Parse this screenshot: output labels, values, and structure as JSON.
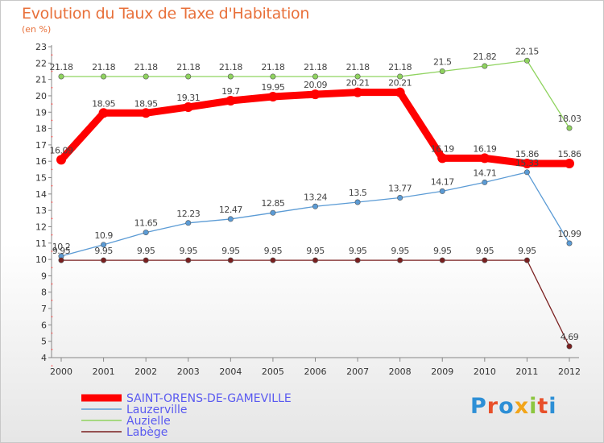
{
  "header": {
    "title": "Evolution du Taux de Taxe d'Habitation",
    "subtitle": "(en %)"
  },
  "logo": {
    "text": "Proxiti"
  },
  "chart_data": {
    "type": "line",
    "title": "Evolution du Taux de Taxe d'Habitation",
    "ylabel": "(en %)",
    "x": [
      2000,
      2001,
      2002,
      2003,
      2004,
      2005,
      2006,
      2007,
      2008,
      2009,
      2010,
      2011,
      2012
    ],
    "ylim": [
      4,
      23
    ],
    "yticks": [
      4,
      5,
      6,
      7,
      8,
      9,
      10,
      11,
      12,
      13,
      14,
      15,
      16,
      17,
      18,
      19,
      20,
      21,
      22,
      23
    ],
    "grid": false,
    "legend_position": "bottom-left",
    "series": [
      {
        "name": "SAINT-ORENS-DE-GAMEVILLE",
        "color": "#ff0000",
        "weight": "thick",
        "values": [
          16.09,
          18.95,
          18.95,
          19.31,
          19.7,
          19.95,
          20.09,
          20.21,
          20.21,
          16.19,
          16.19,
          15.86,
          15.86
        ]
      },
      {
        "name": "Lauzerville",
        "color": "#5b9bd5",
        "weight": "thin",
        "values": [
          10.2,
          10.9,
          11.65,
          12.23,
          12.47,
          12.85,
          13.24,
          13.5,
          13.77,
          14.17,
          14.71,
          15.33,
          10.99
        ]
      },
      {
        "name": "Auzielle",
        "color": "#8fd35f",
        "weight": "thin",
        "values": [
          21.18,
          21.18,
          21.18,
          21.18,
          21.18,
          21.18,
          21.18,
          21.18,
          21.18,
          21.5,
          21.82,
          22.15,
          18.03
        ]
      },
      {
        "name": "Labège",
        "color": "#7a1f1f",
        "weight": "thin",
        "values": [
          9.95,
          9.95,
          9.95,
          9.95,
          9.95,
          9.95,
          9.95,
          9.95,
          9.95,
          9.95,
          9.95,
          9.95,
          4.69
        ]
      }
    ]
  }
}
